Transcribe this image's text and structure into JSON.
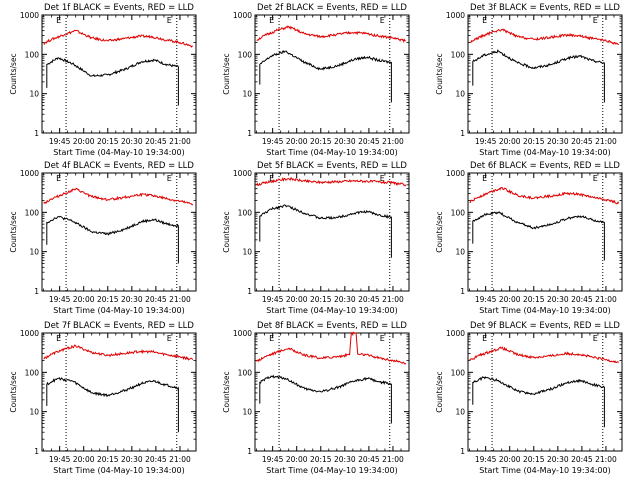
{
  "colors": {
    "events": "#000000",
    "lld": "#e00000",
    "axis": "#000000",
    "background": "#ffffff"
  },
  "chart_data": [
    {
      "type": "line",
      "title": "Det 1f BLACK = Events, RED = LLD",
      "xlabel": "Start Time (04-May-10 19:34:00)",
      "ylabel": "Counts/sec",
      "yscale": "log",
      "ylim": [
        1,
        1000
      ],
      "xlim": [
        "19:34",
        "21:10"
      ],
      "x_ticks": [
        "19:45",
        "20:00",
        "20:15",
        "20:30",
        "20:45",
        "21:00"
      ],
      "y_ticks": [
        "1",
        "10",
        "100",
        "1000"
      ],
      "markers": [
        {
          "label": "E",
          "time": "19:49"
        },
        {
          "label": "E",
          "time": "20:58"
        }
      ],
      "series": [
        {
          "name": "Events",
          "color": "#000000",
          "x": [
            "19:37",
            "19:37",
            "19:44",
            "19:53",
            "20:05",
            "20:15",
            "20:26",
            "20:36",
            "20:44",
            "20:51",
            "20:59",
            "20:59"
          ],
          "values": [
            14,
            55,
            82,
            58,
            28,
            30,
            42,
            65,
            72,
            56,
            48,
            5
          ]
        },
        {
          "name": "LLD",
          "color": "#e00000",
          "x": [
            "19:35",
            "19:40",
            "19:48",
            "19:55",
            "20:05",
            "20:15",
            "20:25",
            "20:35",
            "20:43",
            "20:52",
            "21:00",
            "21:08"
          ],
          "values": [
            190,
            240,
            320,
            400,
            260,
            220,
            250,
            290,
            280,
            230,
            200,
            160
          ]
        }
      ]
    },
    {
      "type": "line",
      "title": "Det 2f BLACK = Events, RED = LLD",
      "xlabel": "Start Time (04-May-10 19:34:00)",
      "ylabel": "Counts/sec",
      "yscale": "log",
      "ylim": [
        1,
        1000
      ],
      "xlim": [
        "19:34",
        "21:10"
      ],
      "x_ticks": [
        "19:45",
        "20:00",
        "20:15",
        "20:30",
        "20:45",
        "21:00"
      ],
      "y_ticks": [
        "1",
        "10",
        "100",
        "1000"
      ],
      "markers": [
        {
          "label": "E",
          "time": "19:49"
        },
        {
          "label": "E",
          "time": "20:58"
        }
      ],
      "series": [
        {
          "name": "Events",
          "color": "#000000",
          "x": [
            "19:37",
            "19:37",
            "19:44",
            "19:53",
            "20:05",
            "20:15",
            "20:26",
            "20:36",
            "20:44",
            "20:51",
            "20:59",
            "20:59"
          ],
          "values": [
            17,
            55,
            90,
            120,
            62,
            42,
            52,
            75,
            85,
            70,
            62,
            6
          ]
        },
        {
          "name": "LLD",
          "color": "#e00000",
          "x": [
            "19:35",
            "19:40",
            "19:48",
            "19:55",
            "20:05",
            "20:15",
            "20:25",
            "20:35",
            "20:43",
            "20:52",
            "21:00",
            "21:08"
          ],
          "values": [
            230,
            300,
            410,
            500,
            330,
            280,
            320,
            360,
            340,
            290,
            260,
            220
          ]
        }
      ]
    },
    {
      "type": "line",
      "title": "Det 3f BLACK = Events, RED = LLD",
      "xlabel": "Start Time (04-May-10 19:34:00)",
      "ylabel": "Counts/sec",
      "yscale": "log",
      "ylim": [
        1,
        1000
      ],
      "xlim": [
        "19:34",
        "21:10"
      ],
      "x_ticks": [
        "19:45",
        "20:00",
        "20:15",
        "20:30",
        "20:45",
        "21:00"
      ],
      "y_ticks": [
        "1",
        "10",
        "100",
        "1000"
      ],
      "markers": [
        {
          "label": "E",
          "time": "19:49"
        },
        {
          "label": "E",
          "time": "20:58"
        }
      ],
      "series": [
        {
          "name": "Events",
          "color": "#000000",
          "x": [
            "19:37",
            "19:37",
            "19:44",
            "19:53",
            "20:05",
            "20:15",
            "20:26",
            "20:36",
            "20:44",
            "20:51",
            "20:59",
            "20:59"
          ],
          "values": [
            16,
            65,
            95,
            120,
            60,
            45,
            55,
            80,
            90,
            70,
            60,
            6
          ]
        },
        {
          "name": "LLD",
          "color": "#e00000",
          "x": [
            "19:35",
            "19:40",
            "19:48",
            "19:55",
            "20:05",
            "20:15",
            "20:25",
            "20:35",
            "20:43",
            "20:52",
            "21:00",
            "21:08"
          ],
          "values": [
            200,
            260,
            350,
            430,
            280,
            240,
            270,
            310,
            300,
            250,
            220,
            180
          ]
        }
      ]
    },
    {
      "type": "line",
      "title": "Det 4f BLACK = Events, RED = LLD",
      "xlabel": "Start Time (04-May-10 19:34:00)",
      "ylabel": "Counts/sec",
      "yscale": "log",
      "ylim": [
        1,
        1000
      ],
      "xlim": [
        "19:34",
        "21:10"
      ],
      "x_ticks": [
        "19:45",
        "20:00",
        "20:15",
        "20:30",
        "20:45",
        "21:00"
      ],
      "y_ticks": [
        "1",
        "10",
        "100",
        "1000"
      ],
      "markers": [
        {
          "label": "E",
          "time": "19:49"
        },
        {
          "label": "E",
          "time": "20:58"
        }
      ],
      "series": [
        {
          "name": "Events",
          "color": "#000000",
          "x": [
            "19:37",
            "19:37",
            "19:44",
            "19:53",
            "20:05",
            "20:15",
            "20:26",
            "20:36",
            "20:44",
            "20:51",
            "20:59",
            "20:59"
          ],
          "values": [
            15,
            55,
            78,
            60,
            32,
            28,
            38,
            58,
            65,
            52,
            45,
            5
          ]
        },
        {
          "name": "LLD",
          "color": "#e00000",
          "x": [
            "19:35",
            "19:40",
            "19:48",
            "19:55",
            "20:05",
            "20:15",
            "20:25",
            "20:35",
            "20:43",
            "20:52",
            "21:00",
            "21:08"
          ],
          "values": [
            170,
            220,
            300,
            390,
            250,
            210,
            240,
            280,
            270,
            220,
            190,
            160
          ]
        }
      ]
    },
    {
      "type": "line",
      "title": "Det 5f BLACK = Events, RED = LLD",
      "xlabel": "Start Time (04-May-10 19:34:00)",
      "ylabel": "Counts/sec",
      "yscale": "log",
      "ylim": [
        1,
        1000
      ],
      "xlim": [
        "19:34",
        "21:10"
      ],
      "x_ticks": [
        "19:45",
        "20:00",
        "20:15",
        "20:30",
        "20:45",
        "21:00"
      ],
      "y_ticks": [
        "1",
        "10",
        "100",
        "1000"
      ],
      "markers": [
        {
          "label": "E",
          "time": "19:49"
        },
        {
          "label": "E",
          "time": "20:58"
        }
      ],
      "series": [
        {
          "name": "Events",
          "color": "#000000",
          "x": [
            "19:37",
            "19:37",
            "19:44",
            "19:53",
            "20:05",
            "20:15",
            "20:26",
            "20:36",
            "20:44",
            "20:51",
            "20:59",
            "20:59"
          ],
          "values": [
            18,
            80,
            120,
            150,
            95,
            70,
            75,
            95,
            105,
            85,
            75,
            7
          ]
        },
        {
          "name": "LLD",
          "color": "#e00000",
          "x": [
            "19:35",
            "19:40",
            "19:48",
            "19:55",
            "20:05",
            "20:15",
            "20:25",
            "20:35",
            "20:43",
            "20:52",
            "21:00",
            "21:08"
          ],
          "values": [
            500,
            560,
            650,
            720,
            620,
            580,
            600,
            630,
            620,
            590,
            560,
            500
          ]
        }
      ]
    },
    {
      "type": "line",
      "title": "Det 6f BLACK = Events, RED = LLD",
      "xlabel": "Start Time (04-May-10 19:34:00)",
      "ylabel": "Counts/sec",
      "yscale": "log",
      "ylim": [
        1,
        1000
      ],
      "xlim": [
        "19:34",
        "21:10"
      ],
      "x_ticks": [
        "19:45",
        "20:00",
        "20:15",
        "20:30",
        "20:45",
        "21:00"
      ],
      "y_ticks": [
        "1",
        "10",
        "100",
        "1000"
      ],
      "markers": [
        {
          "label": "E",
          "time": "19:49"
        },
        {
          "label": "E",
          "time": "20:58"
        }
      ],
      "series": [
        {
          "name": "Events",
          "color": "#000000",
          "x": [
            "19:37",
            "19:37",
            "19:44",
            "19:53",
            "20:05",
            "20:15",
            "20:26",
            "20:36",
            "20:44",
            "20:51",
            "20:59",
            "20:59"
          ],
          "values": [
            16,
            60,
            85,
            100,
            55,
            40,
            50,
            70,
            80,
            65,
            55,
            6
          ]
        },
        {
          "name": "LLD",
          "color": "#e00000",
          "x": [
            "19:35",
            "19:40",
            "19:48",
            "19:55",
            "20:05",
            "20:15",
            "20:25",
            "20:35",
            "20:43",
            "20:52",
            "21:00",
            "21:08"
          ],
          "values": [
            180,
            240,
            330,
            420,
            270,
            230,
            260,
            300,
            290,
            240,
            210,
            170
          ]
        }
      ]
    },
    {
      "type": "line",
      "title": "Det 7f BLACK = Events, RED = LLD",
      "xlabel": "Start Time (04-May-10 19:34:00)",
      "ylabel": "Counts/sec",
      "yscale": "log",
      "ylim": [
        1,
        1000
      ],
      "xlim": [
        "19:34",
        "21:10"
      ],
      "x_ticks": [
        "19:45",
        "20:00",
        "20:15",
        "20:30",
        "20:45",
        "21:00"
      ],
      "y_ticks": [
        "1",
        "10",
        "100",
        "1000"
      ],
      "markers": [
        {
          "label": "E",
          "time": "19:49"
        },
        {
          "label": "E",
          "time": "20:58"
        }
      ],
      "series": [
        {
          "name": "Events",
          "color": "#000000",
          "x": [
            "19:37",
            "19:37",
            "19:44",
            "19:53",
            "20:05",
            "20:15",
            "20:26",
            "20:36",
            "20:44",
            "20:51",
            "20:59",
            "20:59"
          ],
          "values": [
            14,
            50,
            70,
            60,
            30,
            26,
            35,
            52,
            60,
            48,
            40,
            3
          ]
        },
        {
          "name": "LLD",
          "color": "#e00000",
          "x": [
            "19:35",
            "19:40",
            "19:48",
            "19:55",
            "20:05",
            "20:15",
            "20:25",
            "20:35",
            "20:43",
            "20:52",
            "21:00",
            "21:08"
          ],
          "values": [
            220,
            290,
            390,
            470,
            320,
            270,
            300,
            340,
            330,
            280,
            250,
            210
          ]
        }
      ]
    },
    {
      "type": "line",
      "title": "Det 8f BLACK = Events, RED = LLD",
      "xlabel": "Start Time (04-May-10 19:34:00)",
      "ylabel": "Counts/sec",
      "yscale": "log",
      "ylim": [
        1,
        1000
      ],
      "xlim": [
        "19:34",
        "21:10"
      ],
      "x_ticks": [
        "19:45",
        "20:00",
        "20:15",
        "20:30",
        "20:45",
        "21:00"
      ],
      "y_ticks": [
        "1",
        "10",
        "100",
        "1000"
      ],
      "markers": [
        {
          "label": "E",
          "time": "19:49"
        },
        {
          "label": "E",
          "time": "20:58"
        }
      ],
      "series": [
        {
          "name": "Events",
          "color": "#000000",
          "x": [
            "19:37",
            "19:37",
            "19:44",
            "19:53",
            "20:05",
            "20:15",
            "20:26",
            "20:36",
            "20:44",
            "20:51",
            "20:59",
            "20:59"
          ],
          "values": [
            16,
            55,
            80,
            70,
            38,
            32,
            42,
            60,
            70,
            58,
            50,
            5
          ]
        },
        {
          "name": "LLD",
          "color": "#e00000",
          "x": [
            "19:35",
            "19:40",
            "19:48",
            "19:55",
            "20:05",
            "20:15",
            "20:25",
            "20:33",
            "20:34",
            "20:37",
            "20:38",
            "20:43",
            "20:52",
            "21:00",
            "21:08"
          ],
          "values": [
            190,
            250,
            330,
            410,
            270,
            230,
            250,
            280,
            1000,
            1000,
            290,
            280,
            230,
            200,
            170
          ]
        }
      ]
    },
    {
      "type": "line",
      "title": "Det 9f BLACK = Events, RED = LLD",
      "xlabel": "Start Time (04-May-10 19:34:00)",
      "ylabel": "Counts/sec",
      "yscale": "log",
      "ylim": [
        1,
        1000
      ],
      "xlim": [
        "19:34",
        "21:10"
      ],
      "x_ticks": [
        "19:45",
        "20:00",
        "20:15",
        "20:30",
        "20:45",
        "21:00"
      ],
      "y_ticks": [
        "1",
        "10",
        "100",
        "1000"
      ],
      "markers": [
        {
          "label": "E",
          "time": "19:49"
        },
        {
          "label": "E",
          "time": "20:58"
        }
      ],
      "series": [
        {
          "name": "Events",
          "color": "#000000",
          "x": [
            "19:37",
            "19:37",
            "19:44",
            "19:53",
            "20:05",
            "20:15",
            "20:26",
            "20:36",
            "20:44",
            "20:51",
            "20:59",
            "20:59"
          ],
          "values": [
            15,
            55,
            75,
            62,
            33,
            28,
            38,
            55,
            62,
            50,
            42,
            4
          ]
        },
        {
          "name": "LLD",
          "color": "#e00000",
          "x": [
            "19:35",
            "19:40",
            "19:48",
            "19:55",
            "20:05",
            "20:15",
            "20:25",
            "20:35",
            "20:43",
            "20:52",
            "21:00",
            "21:08"
          ],
          "values": [
            200,
            260,
            340,
            420,
            280,
            240,
            260,
            300,
            290,
            240,
            210,
            180
          ]
        }
      ]
    }
  ]
}
